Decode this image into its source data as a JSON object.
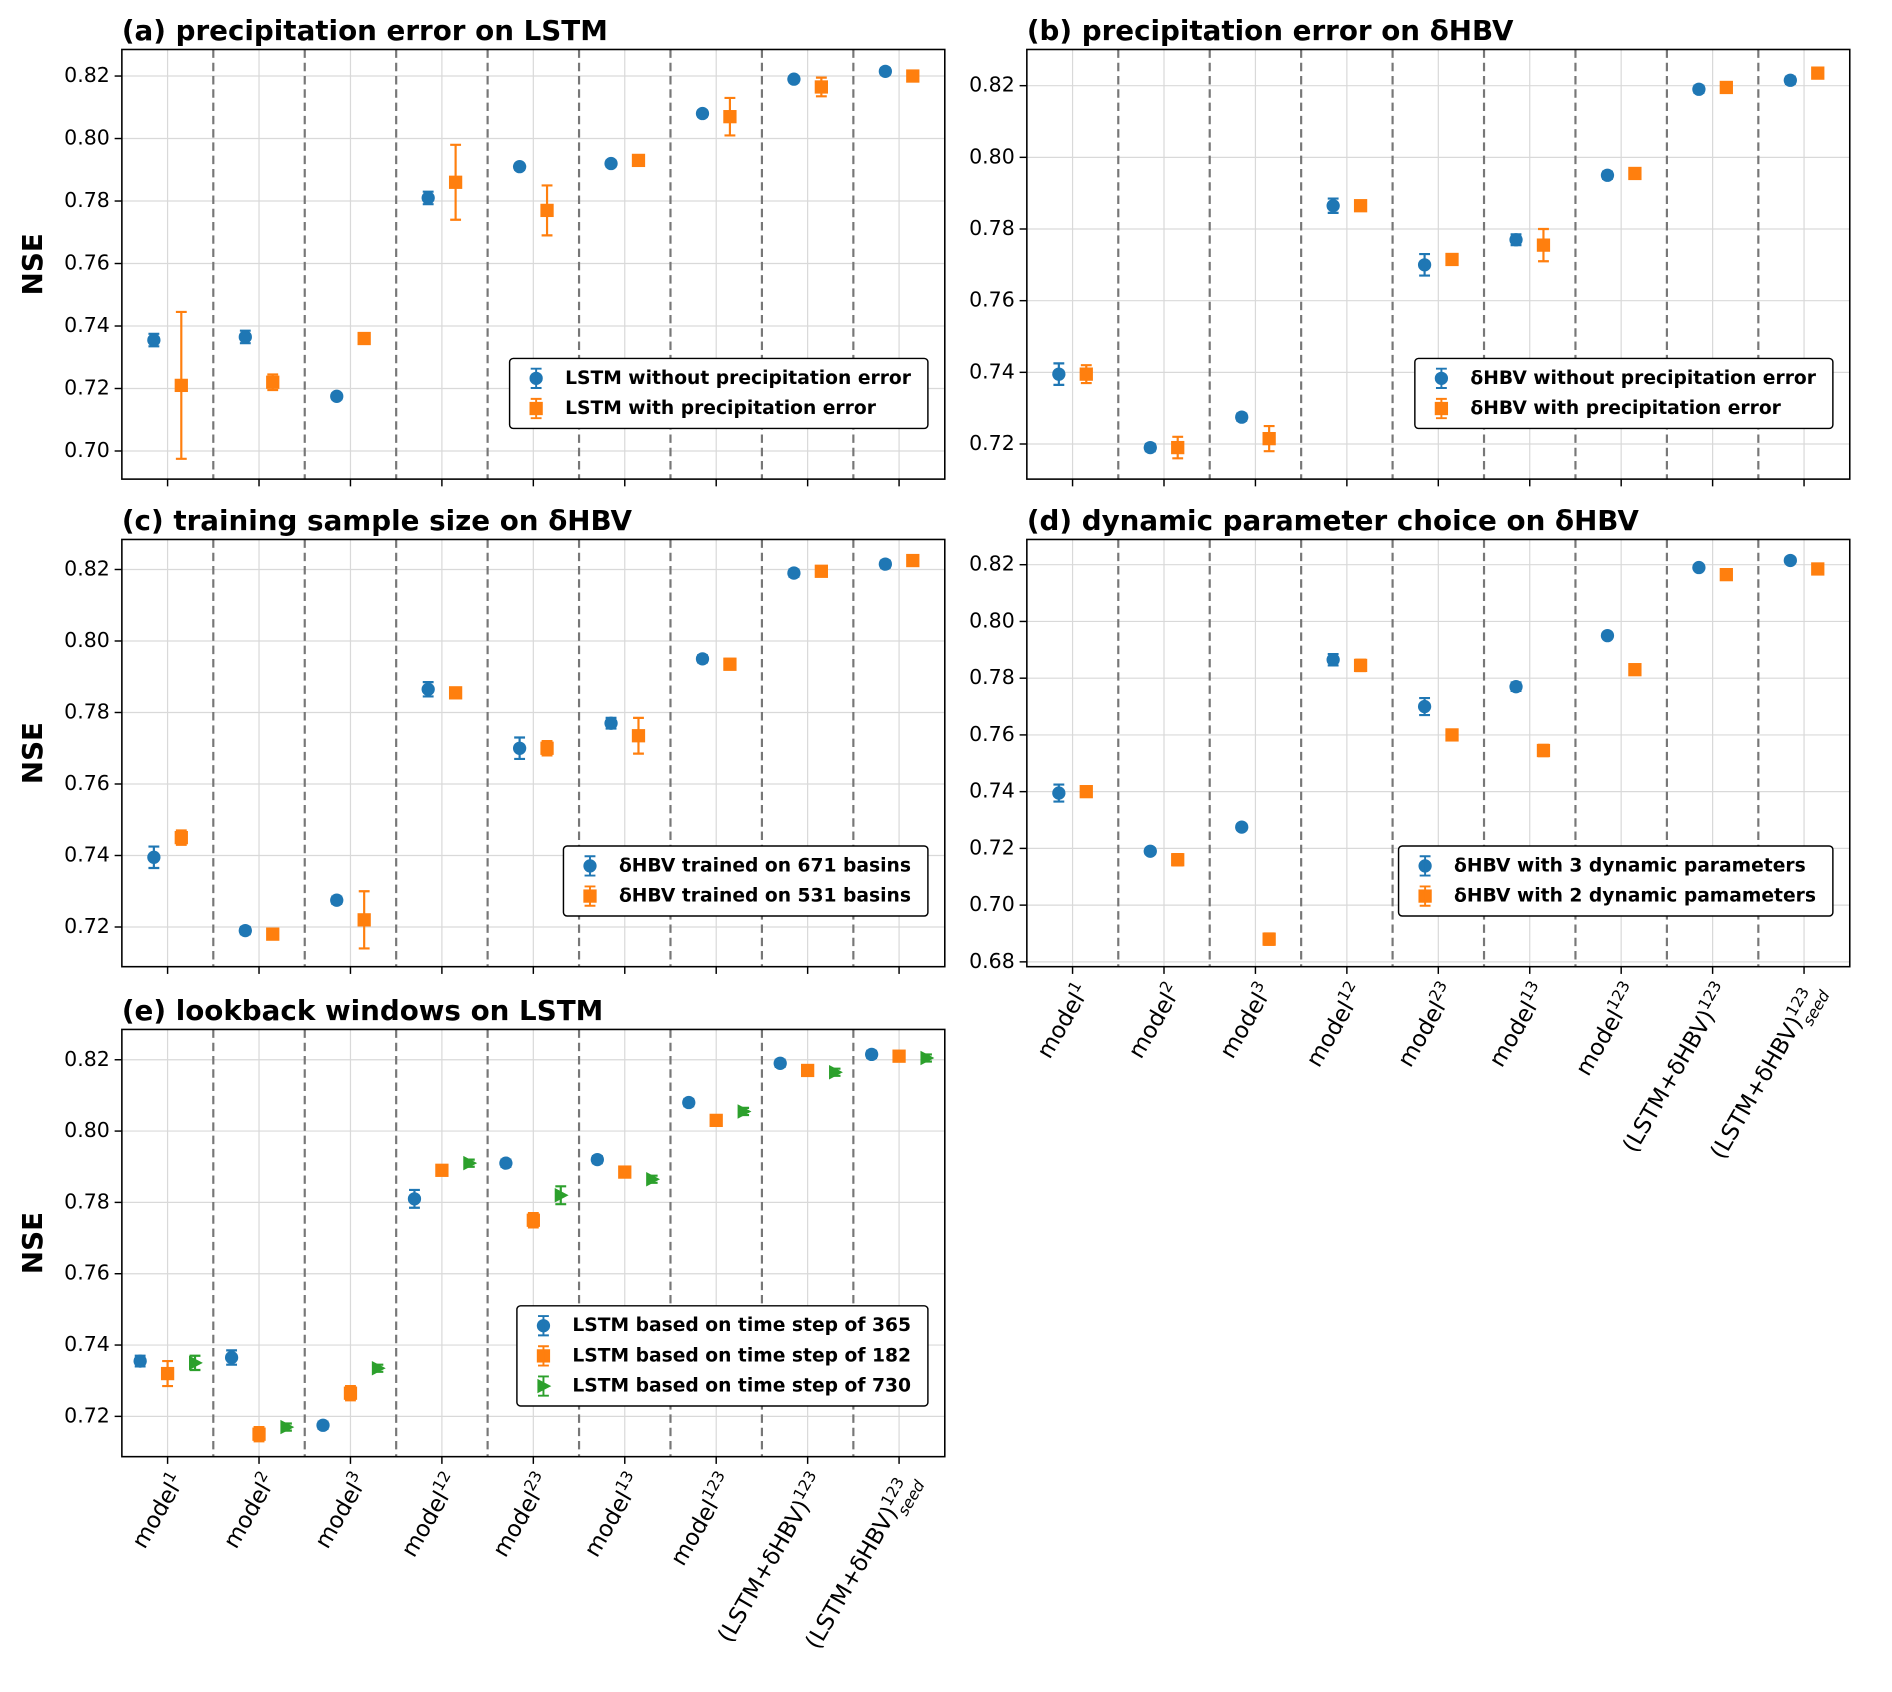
{
  "chart_data": [
    {
      "type": "errorbar",
      "title": "(a) precipitation error on LSTM",
      "y_label": "NSE",
      "categories": [
        null,
        null,
        null,
        null,
        null,
        null,
        null,
        null,
        null
      ],
      "series": [
        {
          "name": "LSTM without precipitation error",
          "color": "#1f77b4",
          "marker": "circle",
          "values": [
            0.7355,
            0.7365,
            0.7175,
            0.781,
            0.791,
            0.792,
            0.808,
            0.819,
            0.8215
          ],
          "errors": [
            0.002,
            0.002,
            0.001,
            0.002,
            0.001,
            0.001,
            0.001,
            0.001,
            0.001
          ]
        },
        {
          "name": "LSTM with precipitation error",
          "color": "#ff7f0e",
          "marker": "square",
          "values": [
            0.721,
            0.722,
            0.736,
            0.786,
            0.777,
            0.793,
            0.807,
            0.8165,
            0.82
          ],
          "errors": [
            0.0235,
            0.0025,
            0.001,
            0.012,
            0.008,
            0.0015,
            0.006,
            0.003,
            0.001
          ]
        }
      ],
      "ylim": [
        0.691,
        0.8285
      ],
      "yticks": [
        {
          "value": 0.7,
          "label": "0.70"
        },
        0.72,
        0.74,
        0.76,
        0.78,
        {
          "value": 0.8,
          "label": "0.80"
        },
        0.82
      ],
      "grid": true,
      "legend_loc": "lower right"
    },
    {
      "type": "errorbar",
      "title": "(b) precipitation error on δHBV",
      "categories": [
        null,
        null,
        null,
        null,
        null,
        null,
        null,
        null,
        null
      ],
      "series": [
        {
          "name": "δHBV without precipitation error",
          "color": "#1f77b4",
          "marker": "circle",
          "values": [
            0.7395,
            0.719,
            0.7275,
            0.7865,
            0.77,
            0.777,
            0.795,
            0.819,
            0.8215
          ],
          "errors": [
            0.003,
            0.001,
            0.001,
            0.002,
            0.003,
            0.0015,
            0.001,
            0.001,
            0.001
          ]
        },
        {
          "name": "δHBV with precipitation error",
          "color": "#ff7f0e",
          "marker": "square",
          "values": [
            0.7395,
            0.719,
            0.7215,
            0.7865,
            0.7715,
            0.7755,
            0.7955,
            0.8195,
            0.8235
          ],
          "errors": [
            0.0025,
            0.003,
            0.0035,
            0.001,
            0.001,
            0.0045,
            0.001,
            0.001,
            0.001
          ]
        }
      ],
      "ylim": [
        0.7102,
        0.8301
      ],
      "yticks": [
        0.72,
        0.74,
        0.76,
        0.78,
        {
          "value": 0.8,
          "label": "0.80"
        },
        0.82
      ],
      "grid": true,
      "legend_loc": "lower right"
    },
    {
      "type": "errorbar",
      "title": "(c) training sample size on δHBV",
      "y_label": "NSE",
      "categories": [
        null,
        null,
        null,
        null,
        null,
        null,
        null,
        null,
        null
      ],
      "series": [
        {
          "name": "δHBV trained on 671 basins",
          "color": "#1f77b4",
          "marker": "circle",
          "values": [
            0.7395,
            0.719,
            0.7275,
            0.7865,
            0.77,
            0.777,
            0.795,
            0.819,
            0.8215
          ],
          "errors": [
            0.003,
            0.001,
            0.001,
            0.002,
            0.003,
            0.0015,
            0.001,
            0.001,
            0.001
          ]
        },
        {
          "name": "δHBV trained on 531 basins",
          "color": "#ff7f0e",
          "marker": "square",
          "values": [
            0.745,
            0.718,
            0.722,
            0.7855,
            0.77,
            0.7735,
            0.7935,
            0.8195,
            0.8225
          ],
          "errors": [
            0.002,
            0.001,
            0.008,
            0.001,
            0.002,
            0.005,
            0.0015,
            0.001,
            0.001
          ]
        }
      ],
      "ylim": [
        0.7089,
        0.8284
      ],
      "yticks": [
        0.72,
        0.74,
        0.76,
        0.78,
        {
          "value": 0.8,
          "label": "0.80"
        },
        0.82
      ],
      "grid": true,
      "legend_loc": "lower right"
    },
    {
      "type": "errorbar",
      "title": "(d) dynamic parameter choice on δHBV",
      "categories": [
        {
          "base": "model",
          "sup": "1"
        },
        {
          "base": "model",
          "sup": "2"
        },
        {
          "base": "model",
          "sup": "3"
        },
        {
          "base": "model",
          "sup": "12"
        },
        {
          "base": "model",
          "sup": "23"
        },
        {
          "base": "model",
          "sup": "13"
        },
        {
          "base": "model",
          "sup": "123"
        },
        {
          "base": "(LSTM+δHBV)",
          "sup": "123"
        },
        {
          "base": "(LSTM+δHBV)",
          "sup": "123",
          "sub": "seed"
        }
      ],
      "series": [
        {
          "name": "δHBV with 3 dynamic parameters",
          "color": "#1f77b4",
          "marker": "circle",
          "values": [
            0.7395,
            0.719,
            0.7275,
            0.7865,
            0.77,
            0.777,
            0.795,
            0.819,
            0.8215
          ],
          "errors": [
            0.003,
            0.001,
            0.001,
            0.002,
            0.003,
            0.0015,
            0.001,
            0.001,
            0.001
          ]
        },
        {
          "name": "δHBV with 2 dynamic pamameters",
          "color": "#ff7f0e",
          "marker": "square",
          "values": [
            0.74,
            0.716,
            0.688,
            0.7845,
            0.76,
            0.7545,
            0.783,
            0.8165,
            0.8185
          ],
          "errors": [
            0.001,
            0.002,
            0.002,
            0.002,
            0.001,
            0.002,
            0.001,
            0.001,
            0.001
          ]
        }
      ],
      "ylim": [
        0.6783,
        0.8289
      ],
      "yticks": [
        0.68,
        {
          "value": 0.7,
          "label": "0.70"
        },
        0.72,
        0.74,
        0.76,
        0.78,
        {
          "value": 0.8,
          "label": "0.80"
        },
        0.82
      ],
      "grid": true,
      "legend_loc": "lower right"
    },
    {
      "type": "errorbar",
      "title": "(e) lookback windows on LSTM",
      "y_label": "NSE",
      "categories": [
        {
          "base": "model",
          "sup": "1"
        },
        {
          "base": "model",
          "sup": "2"
        },
        {
          "base": "model",
          "sup": "3"
        },
        {
          "base": "model",
          "sup": "12"
        },
        {
          "base": "model",
          "sup": "23"
        },
        {
          "base": "model",
          "sup": "13"
        },
        {
          "base": "model",
          "sup": "123"
        },
        {
          "base": "(LSTM+δHBV)",
          "sup": "123"
        },
        {
          "base": "(LSTM+δHBV)",
          "sup": "123",
          "sub": "seed"
        }
      ],
      "series": [
        {
          "name": "LSTM based on time step of 365",
          "color": "#1f77b4",
          "marker": "circle",
          "values": [
            0.7355,
            0.7365,
            0.7175,
            0.781,
            0.791,
            0.792,
            0.808,
            0.819,
            0.8215
          ],
          "errors": [
            0.0015,
            0.002,
            0.001,
            0.0025,
            0.001,
            0.001,
            0.001,
            0.001,
            0.001
          ]
        },
        {
          "name": "LSTM based on time step of 182",
          "color": "#ff7f0e",
          "marker": "square",
          "values": [
            0.732,
            0.715,
            0.7265,
            0.789,
            0.775,
            0.7885,
            0.803,
            0.817,
            0.821
          ],
          "errors": [
            0.0035,
            0.002,
            0.002,
            0.001,
            0.002,
            0.001,
            0.001,
            0.001,
            0.001
          ]
        },
        {
          "name": "LSTM based on time step of 730",
          "color": "#2ca02c",
          "marker": "triangle-right",
          "values": [
            0.735,
            0.717,
            0.7335,
            0.791,
            0.782,
            0.7865,
            0.8055,
            0.8165,
            0.8205
          ],
          "errors": [
            0.002,
            0.001,
            0.001,
            0.001,
            0.0025,
            0.001,
            0.001,
            0.001,
            0.001
          ]
        }
      ],
      "ylim": [
        0.7087,
        0.8285
      ],
      "yticks": [
        0.72,
        0.74,
        0.76,
        0.78,
        {
          "value": 0.8,
          "label": "0.80"
        },
        0.82
      ],
      "grid": true,
      "legend_loc": "lower right"
    }
  ]
}
